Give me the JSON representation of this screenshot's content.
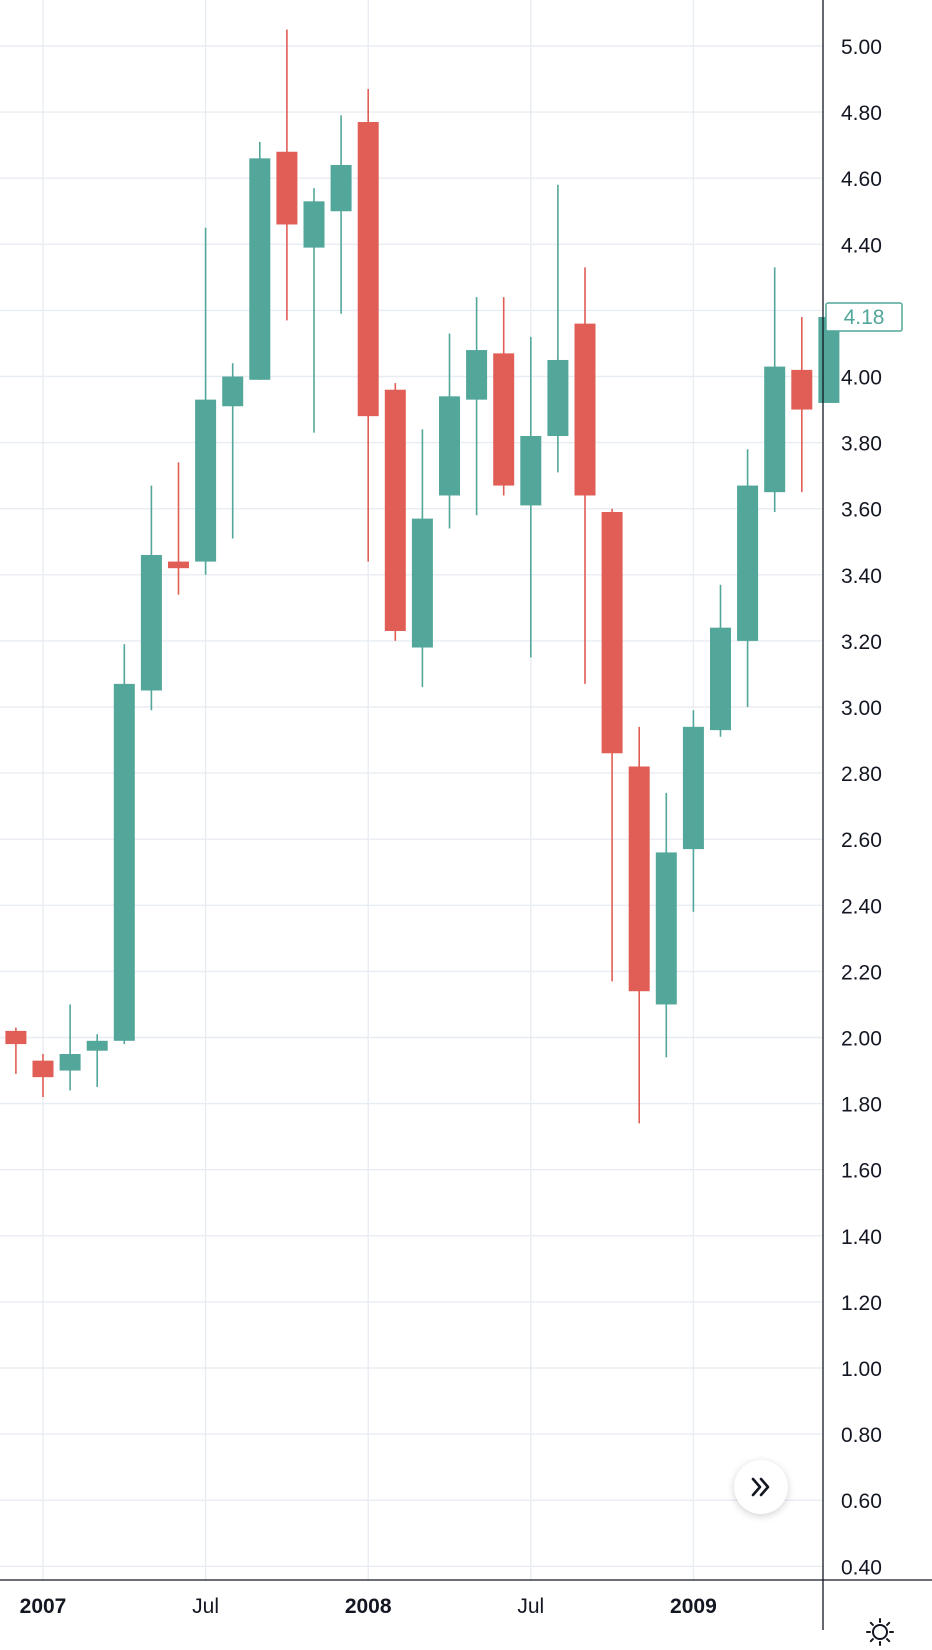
{
  "chart_data": {
    "type": "candlestick",
    "title": "",
    "xlabel": "",
    "ylabel": "",
    "ylim": [
      0.4,
      5.06
    ],
    "y_ticks": [
      "5.00",
      "4.80",
      "4.60",
      "4.40",
      "4.20",
      "4.00",
      "3.80",
      "3.60",
      "3.40",
      "3.20",
      "3.00",
      "2.80",
      "2.60",
      "2.40",
      "2.20",
      "2.00",
      "1.80",
      "1.60",
      "1.40",
      "1.20",
      "1.00",
      "0.80",
      "0.60",
      "0.40"
    ],
    "x_ticks": [
      {
        "label": "2007",
        "month_index": 0,
        "year": true
      },
      {
        "label": "Jul",
        "month_index": 6,
        "year": false
      },
      {
        "label": "2008",
        "month_index": 12,
        "year": true
      },
      {
        "label": "Jul",
        "month_index": 18,
        "year": false
      },
      {
        "label": "2009",
        "month_index": 24,
        "year": true
      }
    ],
    "up_color": "#52a69a",
    "down_color": "#e05e55",
    "grid": true,
    "last_price": "4.18",
    "candles": [
      {
        "month": "2006-12",
        "open": 2.02,
        "high": 2.03,
        "low": 1.89,
        "close": 1.98
      },
      {
        "month": "2007-01",
        "open": 1.93,
        "high": 1.95,
        "low": 1.82,
        "close": 1.88
      },
      {
        "month": "2007-02",
        "open": 1.9,
        "high": 2.1,
        "low": 1.84,
        "close": 1.95
      },
      {
        "month": "2007-03",
        "open": 1.96,
        "high": 2.01,
        "low": 1.85,
        "close": 1.99
      },
      {
        "month": "2007-04",
        "open": 1.99,
        "high": 3.19,
        "low": 1.98,
        "close": 3.07
      },
      {
        "month": "2007-05",
        "open": 3.05,
        "high": 3.67,
        "low": 2.99,
        "close": 3.46
      },
      {
        "month": "2007-06",
        "open": 3.44,
        "high": 3.74,
        "low": 3.34,
        "close": 3.42
      },
      {
        "month": "2007-07",
        "open": 3.44,
        "high": 4.45,
        "low": 3.4,
        "close": 3.93
      },
      {
        "month": "2007-08",
        "open": 3.91,
        "high": 4.04,
        "low": 3.51,
        "close": 4.0
      },
      {
        "month": "2007-09",
        "open": 3.99,
        "high": 4.71,
        "low": 3.99,
        "close": 4.66
      },
      {
        "month": "2007-10",
        "open": 4.68,
        "high": 5.05,
        "low": 4.17,
        "close": 4.46
      },
      {
        "month": "2007-11",
        "open": 4.39,
        "high": 4.57,
        "low": 3.83,
        "close": 4.53
      },
      {
        "month": "2007-12",
        "open": 4.5,
        "high": 4.79,
        "low": 4.19,
        "close": 4.64
      },
      {
        "month": "2008-01",
        "open": 4.77,
        "high": 4.87,
        "low": 3.44,
        "close": 3.88
      },
      {
        "month": "2008-02",
        "open": 3.96,
        "high": 3.98,
        "low": 3.2,
        "close": 3.23
      },
      {
        "month": "2008-03",
        "open": 3.18,
        "high": 3.84,
        "low": 3.06,
        "close": 3.57
      },
      {
        "month": "2008-04",
        "open": 3.64,
        "high": 4.13,
        "low": 3.54,
        "close": 3.94
      },
      {
        "month": "2008-05",
        "open": 3.93,
        "high": 4.24,
        "low": 3.58,
        "close": 4.08
      },
      {
        "month": "2008-06",
        "open": 4.07,
        "high": 4.24,
        "low": 3.64,
        "close": 3.67
      },
      {
        "month": "2008-07",
        "open": 3.61,
        "high": 4.12,
        "low": 3.15,
        "close": 3.82
      },
      {
        "month": "2008-08",
        "open": 3.82,
        "high": 4.58,
        "low": 3.71,
        "close": 4.05
      },
      {
        "month": "2008-09",
        "open": 4.16,
        "high": 4.33,
        "low": 3.07,
        "close": 3.64
      },
      {
        "month": "2008-10",
        "open": 3.59,
        "high": 3.6,
        "low": 2.17,
        "close": 2.86
      },
      {
        "month": "2008-11",
        "open": 2.82,
        "high": 2.94,
        "low": 1.74,
        "close": 2.14
      },
      {
        "month": "2008-12",
        "open": 2.1,
        "high": 2.74,
        "low": 1.94,
        "close": 2.56
      },
      {
        "month": "2009-01",
        "open": 2.57,
        "high": 2.99,
        "low": 2.38,
        "close": 2.94
      },
      {
        "month": "2009-02",
        "open": 2.93,
        "high": 3.37,
        "low": 2.91,
        "close": 3.24
      },
      {
        "month": "2009-03",
        "open": 3.2,
        "high": 3.78,
        "low": 3.0,
        "close": 3.67
      },
      {
        "month": "2009-04",
        "open": 3.65,
        "high": 4.33,
        "low": 3.59,
        "close": 4.03
      },
      {
        "month": "2009-05",
        "open": 4.02,
        "high": 4.18,
        "low": 3.65,
        "close": 3.9
      },
      {
        "month": "2009-06",
        "open": 3.92,
        "high": 4.19,
        "low": 3.92,
        "close": 4.18
      }
    ]
  },
  "controls": {
    "scroll_icon": "double-chevron-right-icon",
    "settings_icon": "settings-sun-icon"
  }
}
